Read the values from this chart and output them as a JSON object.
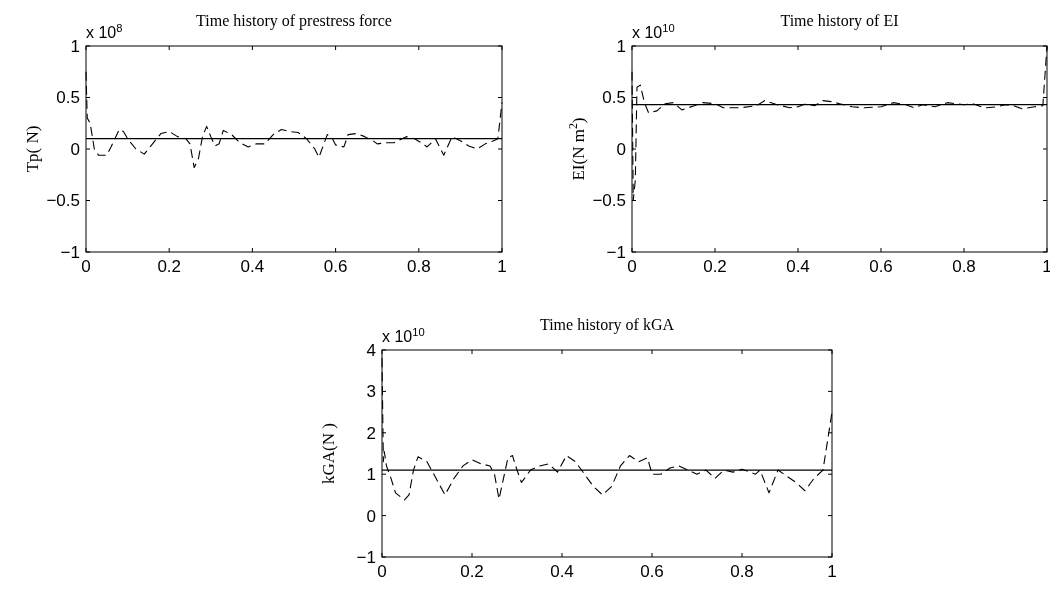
{
  "chart_data": [
    {
      "type": "line",
      "title": "Time history of prestress force",
      "ylabel": "Tp( N)",
      "annotations": [
        "x 10$^{8}$"
      ],
      "xlim": [
        0,
        1
      ],
      "ylim": [
        -1,
        1
      ],
      "xticks": [
        0,
        0.2,
        0.4,
        0.6,
        0.8,
        1
      ],
      "yticks": [
        -1,
        -0.5,
        0,
        0.5,
        1
      ],
      "grid": false,
      "ref_lines": [
        {
          "axis": "y",
          "value": 0.1,
          "color": "#000000",
          "line_style": "solid"
        }
      ],
      "series": [
        {
          "color": "#000000",
          "line_style": "dashed",
          "x": [
            0,
            0.003,
            0.01,
            0.02,
            0.03,
            0.05,
            0.06,
            0.08,
            0.09,
            0.1,
            0.12,
            0.14,
            0.16,
            0.18,
            0.2,
            0.22,
            0.24,
            0.25,
            0.26,
            0.27,
            0.28,
            0.29,
            0.3,
            0.31,
            0.32,
            0.33,
            0.35,
            0.37,
            0.39,
            0.41,
            0.43,
            0.45,
            0.47,
            0.49,
            0.51,
            0.53,
            0.55,
            0.56,
            0.58,
            0.59,
            0.6,
            0.62,
            0.63,
            0.65,
            0.67,
            0.69,
            0.7,
            0.72,
            0.74,
            0.75,
            0.77,
            0.79,
            0.81,
            0.82,
            0.84,
            0.86,
            0.88,
            0.9,
            0.92,
            0.94,
            0.96,
            0.98,
            0.99,
            1
          ],
          "values": [
            0.75,
            0.3,
            0.25,
            0,
            -0.06,
            -0.06,
            0.02,
            0.19,
            0.17,
            0.1,
            0,
            -0.05,
            0.05,
            0.15,
            0.17,
            0.12,
            0.1,
            0.05,
            -0.18,
            -0.1,
            0.12,
            0.22,
            0.12,
            0.03,
            0.05,
            0.18,
            0.14,
            0.06,
            0.02,
            0.05,
            0.05,
            0.14,
            0.19,
            0.17,
            0.16,
            0.1,
            0,
            -0.08,
            0.14,
            0.12,
            0.04,
            0.02,
            0.14,
            0.15,
            0.12,
            0.08,
            0.05,
            0.06,
            0.06,
            0.08,
            0.12,
            0.1,
            0.05,
            0.02,
            0.1,
            -0.06,
            0.12,
            0.08,
            0.03,
            0,
            0.05,
            0.08,
            0.1,
            0.45
          ]
        }
      ]
    },
    {
      "type": "line",
      "title": "Time history of EI",
      "ylabel": "EI(N m$^{2}$)",
      "annotations": [
        "x 10$^{10}$"
      ],
      "xlim": [
        0,
        1
      ],
      "ylim": [
        -1,
        1
      ],
      "xticks": [
        0,
        0.2,
        0.4,
        0.6,
        0.8,
        1
      ],
      "yticks": [
        -1,
        -0.5,
        0,
        0.5,
        1
      ],
      "grid": false,
      "ref_lines": [
        {
          "axis": "y",
          "value": 0.43,
          "color": "#000000",
          "line_style": "solid"
        }
      ],
      "series": [
        {
          "color": "#000000",
          "line_style": "dashed",
          "x": [
            0,
            0.003,
            0.008,
            0.012,
            0.02,
            0.03,
            0.04,
            0.06,
            0.08,
            0.1,
            0.12,
            0.15,
            0.17,
            0.2,
            0.22,
            0.26,
            0.3,
            0.32,
            0.35,
            0.38,
            0.4,
            0.42,
            0.44,
            0.46,
            0.48,
            0.5,
            0.53,
            0.56,
            0.6,
            0.63,
            0.66,
            0.68,
            0.7,
            0.73,
            0.76,
            0.8,
            0.82,
            0.85,
            0.88,
            0.9,
            0.92,
            0.94,
            0.97,
            0.99,
            1
          ],
          "values": [
            0.75,
            -0.5,
            -0.3,
            0.6,
            0.62,
            0.45,
            0.35,
            0.37,
            0.44,
            0.45,
            0.38,
            0.42,
            0.45,
            0.44,
            0.4,
            0.4,
            0.42,
            0.47,
            0.43,
            0.4,
            0.41,
            0.44,
            0.42,
            0.47,
            0.46,
            0.44,
            0.41,
            0.4,
            0.41,
            0.45,
            0.43,
            0.4,
            0.43,
            0.41,
            0.45,
            0.43,
            0.44,
            0.4,
            0.41,
            0.43,
            0.42,
            0.39,
            0.41,
            0.42,
            1
          ]
        }
      ]
    },
    {
      "type": "line",
      "title": "Time history of kGA",
      "ylabel": "kGA(N )",
      "annotations": [
        "x 10$^{10}$"
      ],
      "xlim": [
        0,
        1
      ],
      "ylim": [
        -1,
        4
      ],
      "xticks": [
        0,
        0.2,
        0.4,
        0.6,
        0.8,
        1
      ],
      "yticks": [
        -1,
        0,
        1,
        2,
        3,
        4
      ],
      "grid": false,
      "ref_lines": [
        {
          "axis": "y",
          "value": 1.1,
          "color": "#000000",
          "line_style": "solid"
        }
      ],
      "series": [
        {
          "color": "#000000",
          "line_style": "dashed",
          "x": [
            0,
            0.003,
            0.005,
            0.01,
            0.02,
            0.03,
            0.05,
            0.06,
            0.07,
            0.08,
            0.1,
            0.12,
            0.14,
            0.16,
            0.18,
            0.2,
            0.22,
            0.24,
            0.25,
            0.26,
            0.27,
            0.28,
            0.29,
            0.3,
            0.31,
            0.33,
            0.35,
            0.37,
            0.39,
            0.41,
            0.43,
            0.45,
            0.47,
            0.49,
            0.51,
            0.53,
            0.55,
            0.57,
            0.59,
            0.6,
            0.62,
            0.64,
            0.66,
            0.7,
            0.72,
            0.74,
            0.76,
            0.78,
            0.8,
            0.83,
            0.84,
            0.86,
            0.88,
            0.9,
            0.92,
            0.94,
            0.96,
            0.98,
            1
          ],
          "values": [
            3.8,
            1.3,
            1.55,
            1.2,
            0.9,
            0.55,
            0.38,
            0.5,
            1.1,
            1.42,
            1.3,
            0.9,
            0.5,
            0.9,
            1.2,
            1.35,
            1.25,
            1.2,
            1,
            0.4,
            0.9,
            1.4,
            1.45,
            1.1,
            0.8,
            1.1,
            1.2,
            1.25,
            1.05,
            1.45,
            1.3,
            1,
            0.7,
            0.5,
            0.7,
            1.2,
            1.45,
            1.3,
            1.4,
            1,
            1,
            1.15,
            1.2,
            1,
            1.1,
            0.9,
            1.1,
            1.05,
            1.12,
            1,
            1.1,
            0.55,
            1.1,
            0.95,
            0.8,
            0.6,
            0.9,
            1.1,
            2.5
          ]
        }
      ]
    }
  ]
}
